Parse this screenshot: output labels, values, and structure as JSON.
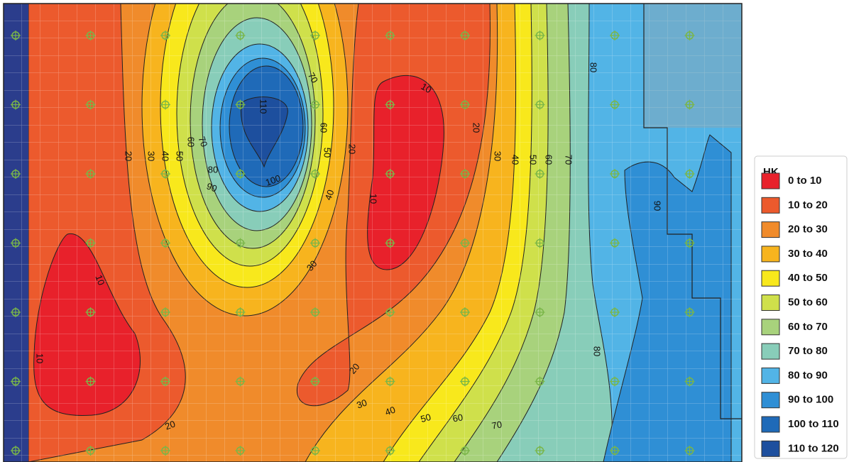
{
  "legend": {
    "title": "HK",
    "items": [
      {
        "label": "0 to 10",
        "color": "#e8212b"
      },
      {
        "label": "10 to 20",
        "color": "#ec5a2d"
      },
      {
        "label": "20 to 30",
        "color": "#f08b2b"
      },
      {
        "label": "30 to 40",
        "color": "#f7b41e"
      },
      {
        "label": "40 to 50",
        "color": "#f8e81c"
      },
      {
        "label": "50 to 60",
        "color": "#cfe04b"
      },
      {
        "label": "60 to 70",
        "color": "#a8d27c"
      },
      {
        "label": "70 to 80",
        "color": "#88cdb9"
      },
      {
        "label": "80 to 90",
        "color": "#52b4e6"
      },
      {
        "label": "90 to 100",
        "color": "#2f8fd5"
      },
      {
        "label": "100 to 110",
        "color": "#1f6ab8"
      },
      {
        "label": "110 to 120",
        "color": "#1d4f9e"
      }
    ]
  },
  "contour_labels": [
    20,
    30,
    40,
    50,
    60,
    70,
    80,
    90,
    100,
    110,
    70,
    60,
    50,
    40,
    20,
    10,
    20,
    30,
    40,
    50,
    60,
    70,
    80,
    90,
    10,
    10,
    10,
    30,
    20,
    20,
    30,
    40,
    50,
    60,
    70,
    80
  ]
}
